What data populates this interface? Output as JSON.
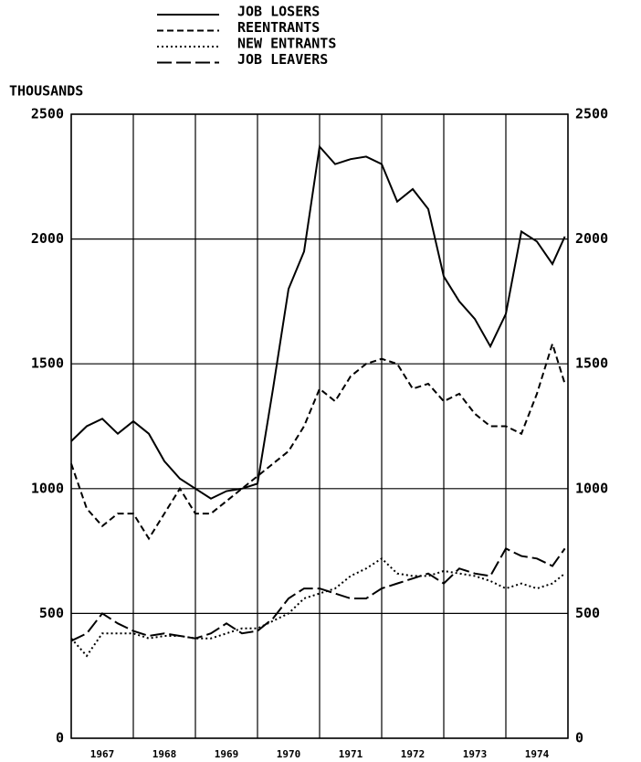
{
  "chart_data": {
    "type": "line",
    "y_axis_label": "THOUSANDS",
    "x": [
      1967.0,
      1967.25,
      1967.5,
      1967.75,
      1968.0,
      1968.25,
      1968.5,
      1968.75,
      1969.0,
      1969.25,
      1969.5,
      1969.75,
      1970.0,
      1970.25,
      1970.5,
      1970.75,
      1971.0,
      1971.25,
      1971.5,
      1971.75,
      1972.0,
      1972.25,
      1972.5,
      1972.75,
      1973.0,
      1973.25,
      1973.5,
      1973.75,
      1974.0,
      1974.25,
      1974.5,
      1974.75,
      1974.95
    ],
    "series": [
      {
        "name": "JOB LOSERS",
        "color": "#000000",
        "dash": "solid",
        "values": [
          1190,
          1250,
          1280,
          1220,
          1270,
          1220,
          1110,
          1040,
          1000,
          960,
          990,
          1000,
          1020,
          1400,
          1800,
          1950,
          2370,
          2300,
          2320,
          2330,
          2300,
          2150,
          2200,
          2120,
          1850,
          1750,
          1680,
          1570,
          1700,
          2030,
          1990,
          1900,
          2010
        ]
      },
      {
        "name": "REENTRANTS",
        "color": "#000000",
        "dash": "dashed",
        "values": [
          1100,
          920,
          850,
          900,
          900,
          800,
          900,
          1000,
          900,
          900,
          950,
          1000,
          1050,
          1100,
          1150,
          1250,
          1400,
          1350,
          1450,
          1500,
          1520,
          1500,
          1400,
          1420,
          1350,
          1380,
          1300,
          1250,
          1250,
          1220,
          1380,
          1580,
          1420
        ]
      },
      {
        "name": "NEW ENTRANTS",
        "color": "#000000",
        "dash": "dotted",
        "values": [
          400,
          330,
          420,
          420,
          420,
          400,
          410,
          410,
          400,
          400,
          420,
          440,
          440,
          470,
          500,
          560,
          580,
          600,
          650,
          680,
          720,
          660,
          650,
          650,
          670,
          660,
          650,
          630,
          600,
          620,
          600,
          620,
          660
        ]
      },
      {
        "name": "JOB LEAVERS",
        "color": "#000000",
        "dash": "longdash",
        "values": [
          390,
          420,
          500,
          460,
          430,
          410,
          420,
          410,
          400,
          420,
          460,
          420,
          430,
          480,
          560,
          600,
          600,
          580,
          560,
          560,
          600,
          620,
          640,
          660,
          620,
          680,
          660,
          650,
          760,
          730,
          720,
          690,
          760
        ]
      }
    ],
    "xlim": [
      1967,
      1975
    ],
    "xgrid": [
      1967,
      1968,
      1969,
      1970,
      1971,
      1972,
      1973,
      1974,
      1975
    ],
    "xticks": [
      {
        "value": 1967.5,
        "label": "1967"
      },
      {
        "value": 1968.5,
        "label": "1968"
      },
      {
        "value": 1969.5,
        "label": "1969"
      },
      {
        "value": 1970.5,
        "label": "1970"
      },
      {
        "value": 1971.5,
        "label": "1971"
      },
      {
        "value": 1972.5,
        "label": "1972"
      },
      {
        "value": 1973.5,
        "label": "1973"
      },
      {
        "value": 1974.5,
        "label": "1974"
      }
    ],
    "ylim": [
      0,
      2500
    ],
    "yticks": [
      0,
      500,
      1000,
      1500,
      2000,
      2500
    ],
    "y2lim": [
      0,
      2500
    ],
    "y2ticks": [
      0,
      500,
      1000,
      1500,
      2000,
      2500
    ],
    "grid": true,
    "legend": "top"
  }
}
